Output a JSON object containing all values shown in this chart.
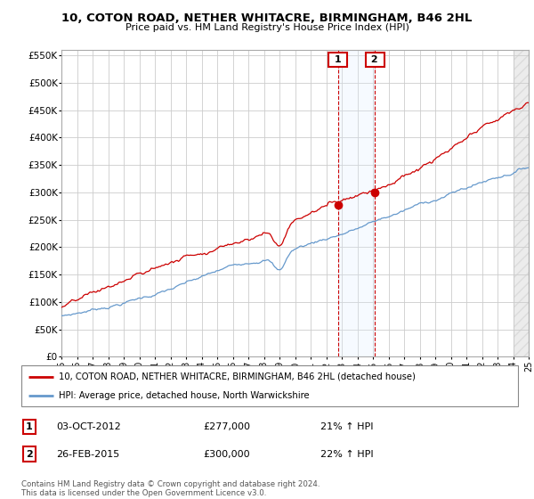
{
  "title": "10, COTON ROAD, NETHER WHITACRE, BIRMINGHAM, B46 2HL",
  "subtitle": "Price paid vs. HM Land Registry's House Price Index (HPI)",
  "ytick_values": [
    0,
    50000,
    100000,
    150000,
    200000,
    250000,
    300000,
    350000,
    400000,
    450000,
    500000,
    550000
  ],
  "x_start_year": 1995,
  "x_end_year": 2025,
  "transaction1": {
    "date": "03-OCT-2012",
    "price": 277000,
    "year": 2012.75,
    "label": "1",
    "pct": "21%",
    "direction": "↑"
  },
  "transaction2": {
    "date": "26-FEB-2015",
    "price": 300000,
    "year": 2015.12,
    "label": "2",
    "pct": "22%",
    "direction": "↑"
  },
  "legend_property": "10, COTON ROAD, NETHER WHITACRE, BIRMINGHAM, B46 2HL (detached house)",
  "legend_hpi": "HPI: Average price, detached house, North Warwickshire",
  "footer": "Contains HM Land Registry data © Crown copyright and database right 2024.\nThis data is licensed under the Open Government Licence v3.0.",
  "property_color": "#cc0000",
  "hpi_color": "#6699cc",
  "vline_color": "#cc0000",
  "span_color": "#ddeeff",
  "grid_color": "#cccccc"
}
